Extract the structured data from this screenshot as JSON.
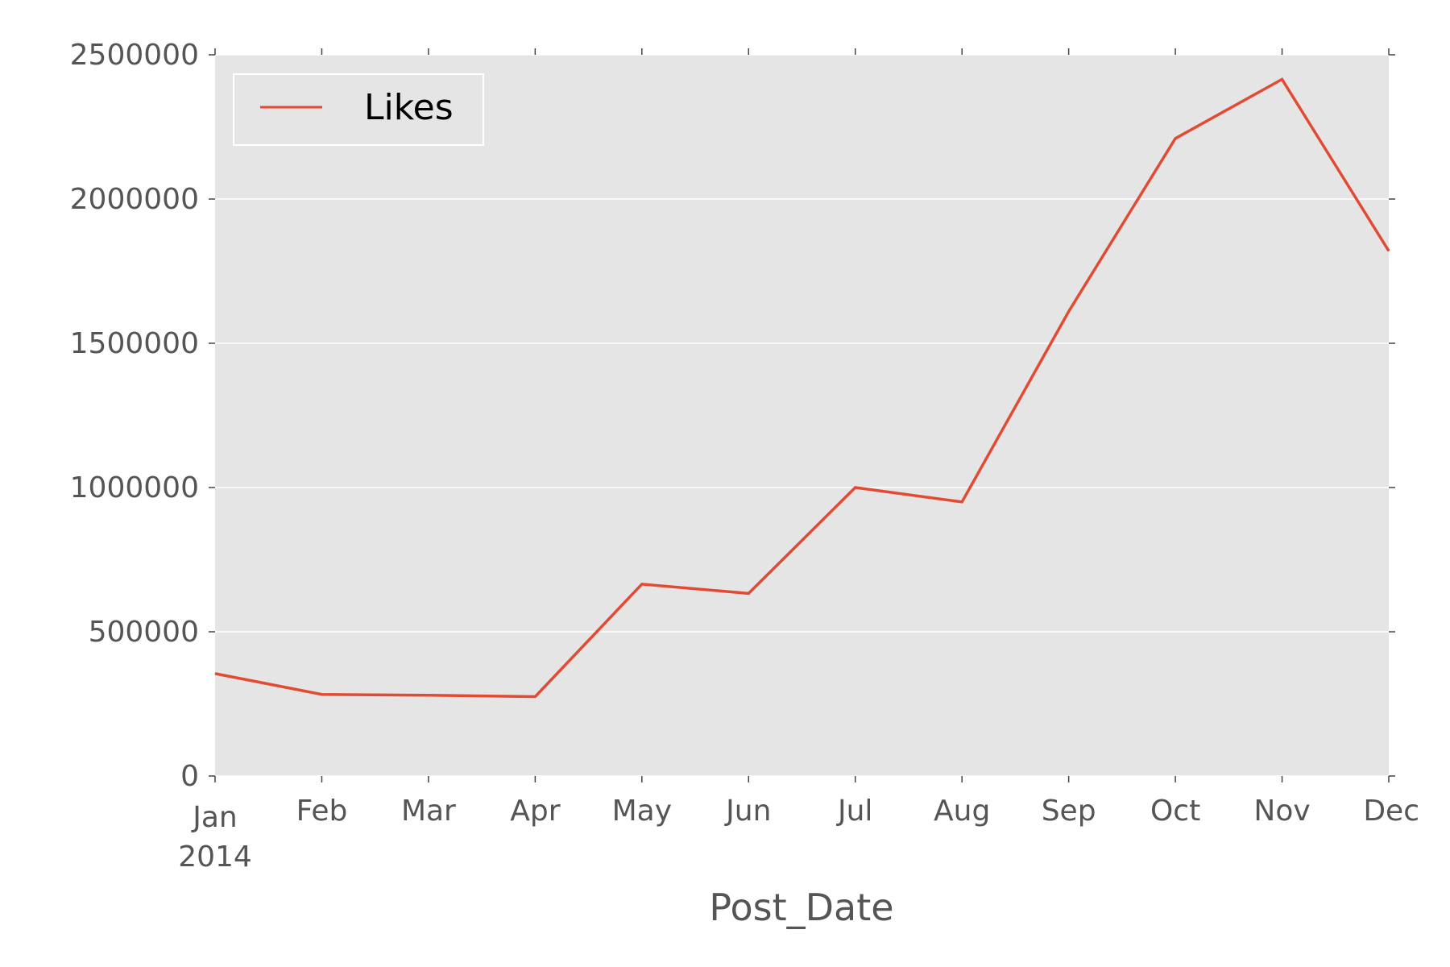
{
  "chart_data": {
    "type": "line",
    "title": "",
    "xlabel": "Post_Date",
    "ylabel": "",
    "x": [
      "2014-01",
      "2014-02",
      "2014-03",
      "2014-04",
      "2014-05",
      "2014-06",
      "2014-07",
      "2014-08",
      "2014-09",
      "2014-10",
      "2014-11",
      "2014-12"
    ],
    "x_tick_labels": [
      "Jan",
      "Feb",
      "Mar",
      "Apr",
      "May",
      "Jun",
      "Jul",
      "Aug",
      "Sep",
      "Oct",
      "Nov",
      "Dec"
    ],
    "x_year_label": "2014",
    "series": [
      {
        "name": "Likes",
        "color": "#E24A33",
        "values": [
          355000,
          283000,
          280000,
          275000,
          665000,
          633000,
          1000000,
          950000,
          1610000,
          2210000,
          2415000,
          1820000
        ]
      }
    ],
    "y_ticks": [
      0,
      500000,
      1000000,
      1500000,
      2000000,
      2500000
    ],
    "y_tick_labels": [
      "0",
      "500000",
      "1000000",
      "1500000",
      "2000000",
      "2500000"
    ],
    "ylim": [
      0,
      2500000
    ],
    "grid": true,
    "legend_position": "top-left",
    "colors": {
      "plot_background": "#E5E5E5",
      "grid": "#FFFFFF",
      "tick_text": "#555555",
      "line": "#E24A33"
    }
  }
}
